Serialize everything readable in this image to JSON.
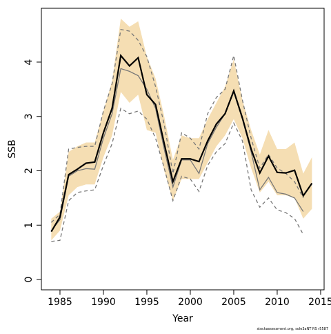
{
  "chart_data": {
    "type": "line",
    "xlabel": "Year",
    "ylabel": "SSB",
    "caption": "stockassessment.org, sole3aNT RS r5587",
    "x": [
      1984,
      1985,
      1986,
      1987,
      1988,
      1989,
      1990,
      1991,
      1992,
      1993,
      1994,
      1995,
      1996,
      1997,
      1998,
      1999,
      2000,
      2001,
      2002,
      2003,
      2004,
      2005,
      2006,
      2007,
      2008,
      2009,
      2010,
      2011,
      2012,
      2013,
      2014
    ],
    "band": {
      "color": "#f5deb3",
      "upper": [
        1.12,
        1.25,
        2.35,
        2.45,
        2.52,
        2.52,
        3.1,
        3.65,
        4.8,
        4.65,
        4.75,
        4.1,
        3.7,
        3.0,
        2.2,
        2.65,
        2.6,
        2.6,
        2.95,
        3.25,
        3.55,
        4.05,
        3.3,
        2.75,
        2.3,
        2.75,
        2.4,
        2.4,
        2.52,
        1.95,
        2.25
      ],
      "lower": [
        0.72,
        0.9,
        1.55,
        1.7,
        1.75,
        1.75,
        2.25,
        2.65,
        3.45,
        3.25,
        3.4,
        2.75,
        2.7,
        2.0,
        1.45,
        1.85,
        1.85,
        1.85,
        2.15,
        2.45,
        2.65,
        2.95,
        2.6,
        2.05,
        1.6,
        1.8,
        1.55,
        1.55,
        1.5,
        1.12,
        1.3
      ]
    },
    "series": [
      {
        "color": "#777777",
        "dash": true,
        "values": [
          1.05,
          1.2,
          2.4,
          2.43,
          2.45,
          2.45,
          3.1,
          3.6,
          4.6,
          4.57,
          4.4,
          4.1,
          3.55,
          2.85,
          1.95,
          2.7,
          2.6,
          2.4,
          3.05,
          3.35,
          3.5,
          4.12,
          3.3,
          2.6,
          2.05,
          2.3,
          2.05,
          1.95,
          1.8,
          1.5,
          null
        ]
      },
      {
        "color": "#777777",
        "dash": true,
        "values": [
          0.7,
          0.72,
          1.45,
          1.6,
          1.63,
          1.65,
          2.1,
          2.5,
          3.15,
          3.05,
          3.1,
          2.95,
          2.6,
          2.05,
          1.45,
          1.9,
          1.85,
          1.62,
          2.1,
          2.35,
          2.5,
          2.88,
          2.55,
          1.65,
          1.33,
          1.5,
          1.28,
          1.23,
          1.12,
          0.83,
          null
        ]
      },
      {
        "color": "#777777",
        "dash": false,
        "values": [
          0.9,
          1.1,
          1.9,
          2.0,
          2.04,
          2.03,
          2.6,
          3.05,
          3.88,
          3.83,
          3.75,
          3.5,
          3.15,
          2.4,
          1.7,
          2.2,
          2.2,
          1.95,
          2.5,
          2.8,
          3.05,
          3.45,
          2.95,
          2.35,
          1.65,
          1.88,
          1.6,
          1.57,
          1.5,
          1.25,
          null
        ]
      },
      {
        "color": "#000000",
        "dash": false,
        "values": [
          0.88,
          1.15,
          1.93,
          2.03,
          2.14,
          2.16,
          2.7,
          3.15,
          4.12,
          3.93,
          4.08,
          3.4,
          3.22,
          2.5,
          1.8,
          2.22,
          2.22,
          2.17,
          2.55,
          2.86,
          3.05,
          3.47,
          2.97,
          2.4,
          1.96,
          2.27,
          1.97,
          1.96,
          2.01,
          1.54,
          1.77
        ]
      }
    ],
    "xlim": [
      1982.86,
      2015.4
    ],
    "xticks": [
      1985,
      1990,
      1995,
      2000,
      2005,
      2010,
      2015
    ],
    "ylim": [
      -0.19,
      4.99
    ],
    "yticks": [
      0,
      1,
      2,
      3,
      4
    ]
  }
}
